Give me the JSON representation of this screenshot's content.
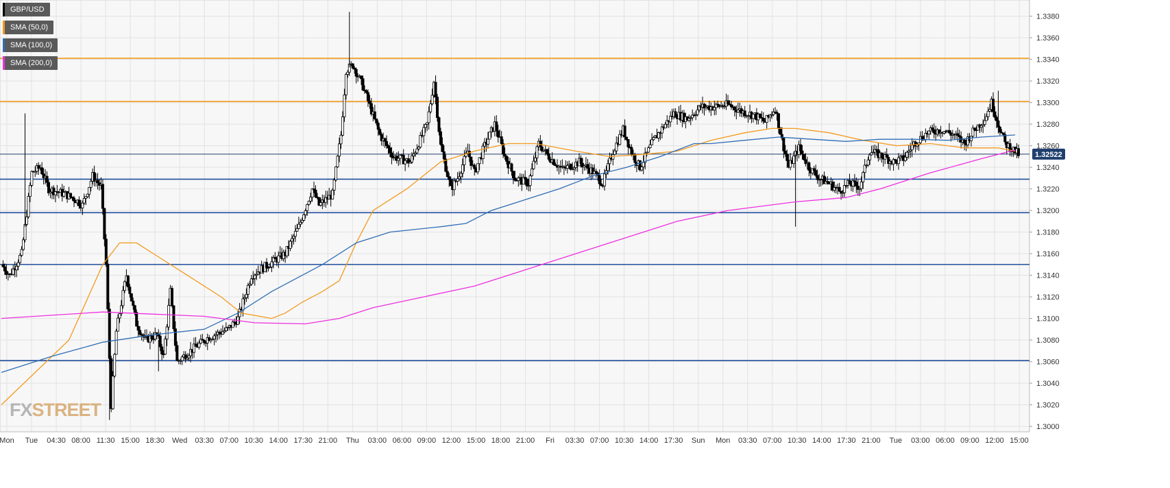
{
  "chart_data": {
    "type": "candlestick",
    "symbol": "GBP/USD",
    "last_price": "1.32522",
    "ylim": [
      1.2995,
      1.3395
    ],
    "y_ticks": [
      "1.3000",
      "1.3020",
      "1.3040",
      "1.3060",
      "1.3080",
      "1.3100",
      "1.3120",
      "1.3140",
      "1.3160",
      "1.3180",
      "1.3200",
      "1.3220",
      "1.3240",
      "1.3260",
      "1.3280",
      "1.3300",
      "1.3320",
      "1.3340",
      "1.3360",
      "1.3380"
    ],
    "x_labels": [
      "Mon",
      "Tue",
      "04:30",
      "08:00",
      "11:30",
      "15:00",
      "18:30",
      "Wed",
      "03:30",
      "07:00",
      "10:30",
      "14:00",
      "17:30",
      "21:00",
      "Thu",
      "03:00",
      "06:00",
      "09:00",
      "12:00",
      "15:00",
      "18:00",
      "21:00",
      "Fri",
      "03:30",
      "07:00",
      "10:30",
      "14:00",
      "17:30",
      "Sun",
      "Mon",
      "03:30",
      "07:00",
      "10:30",
      "14:00",
      "17:30",
      "21:00",
      "Tue",
      "03:00",
      "06:00",
      "09:00",
      "12:00",
      "15:00"
    ],
    "legend": [
      {
        "label": "GBP/USD",
        "color": "#000000"
      },
      {
        "label": "SMA (50,0)",
        "color": "#f39a1d"
      },
      {
        "label": "SMA (100,0)",
        "color": "#2f6db5"
      },
      {
        "label": "SMA (200,0)",
        "color": "#ee2fe0"
      }
    ],
    "horizontal_levels": [
      {
        "value": 1.3341,
        "color": "#f39a1d"
      },
      {
        "value": 1.3301,
        "color": "#f39a1d"
      },
      {
        "value": 1.3229,
        "color": "#1f4e9c"
      },
      {
        "value": 1.3198,
        "color": "#1f4e9c"
      },
      {
        "value": 1.315,
        "color": "#1f4e9c"
      },
      {
        "value": 1.3061,
        "color": "#1f4e9c"
      }
    ],
    "price_line": {
      "value": 1.32522,
      "color": "#1f3f6e"
    },
    "price_path": [
      [
        0,
        1.315
      ],
      [
        5,
        1.314
      ],
      [
        12,
        1.316
      ],
      [
        18,
        1.3235
      ],
      [
        23,
        1.324
      ],
      [
        28,
        1.322
      ],
      [
        38,
        1.3215
      ],
      [
        44,
        1.321
      ],
      [
        48,
        1.3205
      ],
      [
        54,
        1.3232
      ],
      [
        59,
        1.3222
      ],
      [
        62,
        1.315
      ],
      [
        65,
        1.302
      ],
      [
        68,
        1.3088
      ],
      [
        74,
        1.314
      ],
      [
        80,
        1.3095
      ],
      [
        85,
        1.308
      ],
      [
        92,
        1.3085
      ],
      [
        96,
        1.3065
      ],
      [
        100,
        1.3125
      ],
      [
        104,
        1.306
      ],
      [
        112,
        1.307
      ],
      [
        122,
        1.3082
      ],
      [
        134,
        1.309
      ],
      [
        140,
        1.31
      ],
      [
        148,
        1.314
      ],
      [
        158,
        1.315
      ],
      [
        168,
        1.316
      ],
      [
        176,
        1.3185
      ],
      [
        184,
        1.322
      ],
      [
        188,
        1.3205
      ],
      [
        196,
        1.3215
      ],
      [
        201,
        1.327
      ],
      [
        204,
        1.333
      ],
      [
        208,
        1.3335
      ],
      [
        214,
        1.3315
      ],
      [
        224,
        1.327
      ],
      [
        232,
        1.325
      ],
      [
        242,
        1.3245
      ],
      [
        252,
        1.328
      ],
      [
        256,
        1.332
      ],
      [
        260,
        1.326
      ],
      [
        266,
        1.322
      ],
      [
        270,
        1.323
      ],
      [
        276,
        1.3255
      ],
      [
        280,
        1.3235
      ],
      [
        286,
        1.326
      ],
      [
        292,
        1.328
      ],
      [
        298,
        1.325
      ],
      [
        304,
        1.323
      ],
      [
        312,
        1.3225
      ],
      [
        318,
        1.3262
      ],
      [
        324,
        1.325
      ],
      [
        332,
        1.3238
      ],
      [
        342,
        1.3245
      ],
      [
        350,
        1.3236
      ],
      [
        356,
        1.3225
      ],
      [
        362,
        1.3255
      ],
      [
        368,
        1.3275
      ],
      [
        374,
        1.325
      ],
      [
        378,
        1.324
      ],
      [
        386,
        1.3265
      ],
      [
        392,
        1.3278
      ],
      [
        398,
        1.329
      ],
      [
        406,
        1.3285
      ],
      [
        414,
        1.3296
      ],
      [
        422,
        1.3296
      ],
      [
        430,
        1.3298
      ],
      [
        438,
        1.3292
      ],
      [
        446,
        1.3288
      ],
      [
        452,
        1.3282
      ],
      [
        458,
        1.3295
      ],
      [
        462,
        1.3265
      ],
      [
        466,
        1.324
      ],
      [
        472,
        1.3258
      ],
      [
        478,
        1.324
      ],
      [
        484,
        1.323
      ],
      [
        490,
        1.3225
      ],
      [
        496,
        1.3218
      ],
      [
        502,
        1.3225
      ],
      [
        508,
        1.3222
      ],
      [
        514,
        1.3255
      ],
      [
        522,
        1.325
      ],
      [
        528,
        1.3245
      ],
      [
        534,
        1.3248
      ],
      [
        540,
        1.3262
      ],
      [
        548,
        1.3272
      ],
      [
        556,
        1.3275
      ],
      [
        564,
        1.327
      ],
      [
        570,
        1.3262
      ],
      [
        576,
        1.3275
      ],
      [
        582,
        1.3285
      ],
      [
        586,
        1.33
      ],
      [
        590,
        1.328
      ],
      [
        594,
        1.3262
      ],
      [
        600,
        1.3255
      ],
      [
        602,
        1.3252
      ]
    ],
    "sma50": [
      [
        0,
        1.302
      ],
      [
        40,
        1.308
      ],
      [
        60,
        1.315
      ],
      [
        70,
        1.317
      ],
      [
        80,
        1.317
      ],
      [
        95,
        1.3155
      ],
      [
        110,
        1.314
      ],
      [
        130,
        1.312
      ],
      [
        142,
        1.3105
      ],
      [
        160,
        1.31
      ],
      [
        168,
        1.3105
      ],
      [
        178,
        1.3115
      ],
      [
        190,
        1.3125
      ],
      [
        200,
        1.3135
      ],
      [
        210,
        1.317
      ],
      [
        220,
        1.32
      ],
      [
        240,
        1.322
      ],
      [
        260,
        1.3245
      ],
      [
        280,
        1.3255
      ],
      [
        300,
        1.3262
      ],
      [
        316,
        1.3262
      ],
      [
        340,
        1.3255
      ],
      [
        360,
        1.325
      ],
      [
        380,
        1.3252
      ],
      [
        400,
        1.3255
      ],
      [
        420,
        1.3265
      ],
      [
        440,
        1.3272
      ],
      [
        456,
        1.3276
      ],
      [
        470,
        1.3276
      ],
      [
        490,
        1.3272
      ],
      [
        510,
        1.3265
      ],
      [
        530,
        1.326
      ],
      [
        550,
        1.3262
      ],
      [
        570,
        1.3258
      ],
      [
        590,
        1.3258
      ],
      [
        600,
        1.3255
      ]
    ],
    "sma100": [
      [
        0,
        1.305
      ],
      [
        30,
        1.3065
      ],
      [
        60,
        1.3078
      ],
      [
        90,
        1.3085
      ],
      [
        120,
        1.309
      ],
      [
        140,
        1.3105
      ],
      [
        160,
        1.3125
      ],
      [
        190,
        1.315
      ],
      [
        210,
        1.317
      ],
      [
        230,
        1.318
      ],
      [
        260,
        1.3185
      ],
      [
        275,
        1.3188
      ],
      [
        290,
        1.32
      ],
      [
        310,
        1.321
      ],
      [
        330,
        1.322
      ],
      [
        350,
        1.3232
      ],
      [
        370,
        1.324
      ],
      [
        390,
        1.325
      ],
      [
        410,
        1.3262
      ],
      [
        420,
        1.3262
      ],
      [
        440,
        1.3265
      ],
      [
        460,
        1.3268
      ],
      [
        480,
        1.3266
      ],
      [
        500,
        1.3264
      ],
      [
        520,
        1.3266
      ],
      [
        540,
        1.3266
      ],
      [
        560,
        1.3265
      ],
      [
        580,
        1.3268
      ],
      [
        600,
        1.327
      ]
    ],
    "sma200": [
      [
        0,
        1.31
      ],
      [
        30,
        1.3103
      ],
      [
        60,
        1.3106
      ],
      [
        90,
        1.3104
      ],
      [
        120,
        1.3102
      ],
      [
        150,
        1.3096
      ],
      [
        180,
        1.3095
      ],
      [
        200,
        1.31
      ],
      [
        220,
        1.311
      ],
      [
        250,
        1.312
      ],
      [
        280,
        1.313
      ],
      [
        320,
        1.315
      ],
      [
        360,
        1.317
      ],
      [
        400,
        1.319
      ],
      [
        430,
        1.32
      ],
      [
        470,
        1.3208
      ],
      [
        500,
        1.3212
      ],
      [
        520,
        1.322
      ],
      [
        550,
        1.3235
      ],
      [
        580,
        1.3248
      ],
      [
        600,
        1.3256
      ]
    ]
  },
  "legend": {
    "gbpusd": "GBP/USD",
    "sma50": "SMA (50,0)",
    "sma100": "SMA (100,0)",
    "sma200": "SMA (200,0)"
  },
  "logo": {
    "fx": "FX",
    "street": "STREET"
  },
  "colors": {
    "background": "#ffffff",
    "plot_bg": "#f7f7f7",
    "grid": "#e2e2e2",
    "candle": "#000000"
  }
}
